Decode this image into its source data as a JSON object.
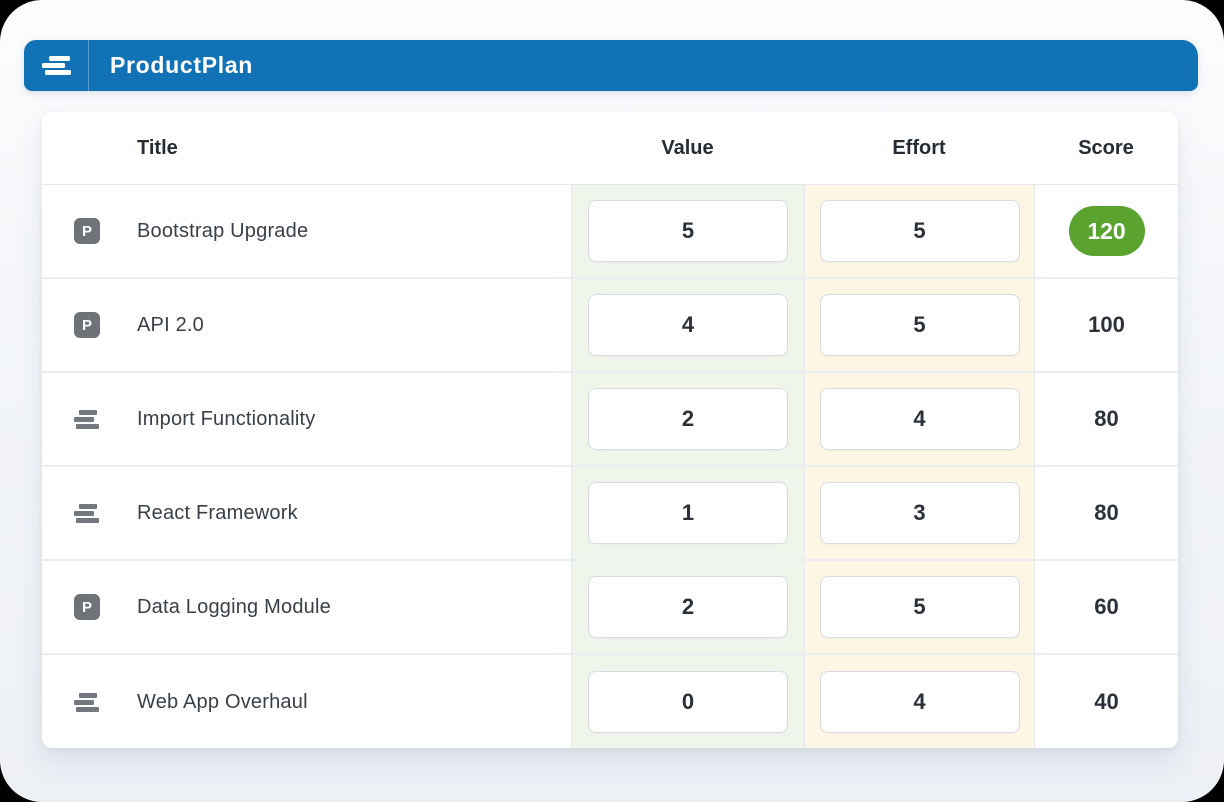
{
  "app": {
    "brand": "ProductPlan",
    "brand_color": "#1272b6",
    "logo_icon": "productplan-bars-logo"
  },
  "table": {
    "columns": [
      {
        "key": "title",
        "label": "Title"
      },
      {
        "key": "value",
        "label": "Value",
        "tint": "#f0f5ec"
      },
      {
        "key": "effort",
        "label": "Effort",
        "tint": "#fdf6e4"
      },
      {
        "key": "score",
        "label": "Score"
      }
    ],
    "score_badge_color": "#5aa32e",
    "rows": [
      {
        "icon": "parking",
        "title": "Bootstrap Upgrade",
        "value": "5",
        "effort": "5",
        "score": "120",
        "score_badge": true
      },
      {
        "icon": "parking",
        "title": "API 2.0",
        "value": "4",
        "effort": "5",
        "score": "100"
      },
      {
        "icon": "bars",
        "title": "Import Functionality",
        "value": "2",
        "effort": "4",
        "score": "80"
      },
      {
        "icon": "bars",
        "title": "React Framework",
        "value": "1",
        "effort": "3",
        "score": "80"
      },
      {
        "icon": "parking",
        "title": "Data Logging Module",
        "value": "2",
        "effort": "5",
        "score": "60"
      },
      {
        "icon": "bars",
        "title": "Web App Overhaul",
        "value": "0",
        "effort": "4",
        "score": "40"
      }
    ]
  },
  "icons": {
    "parking_glyph": "P"
  }
}
